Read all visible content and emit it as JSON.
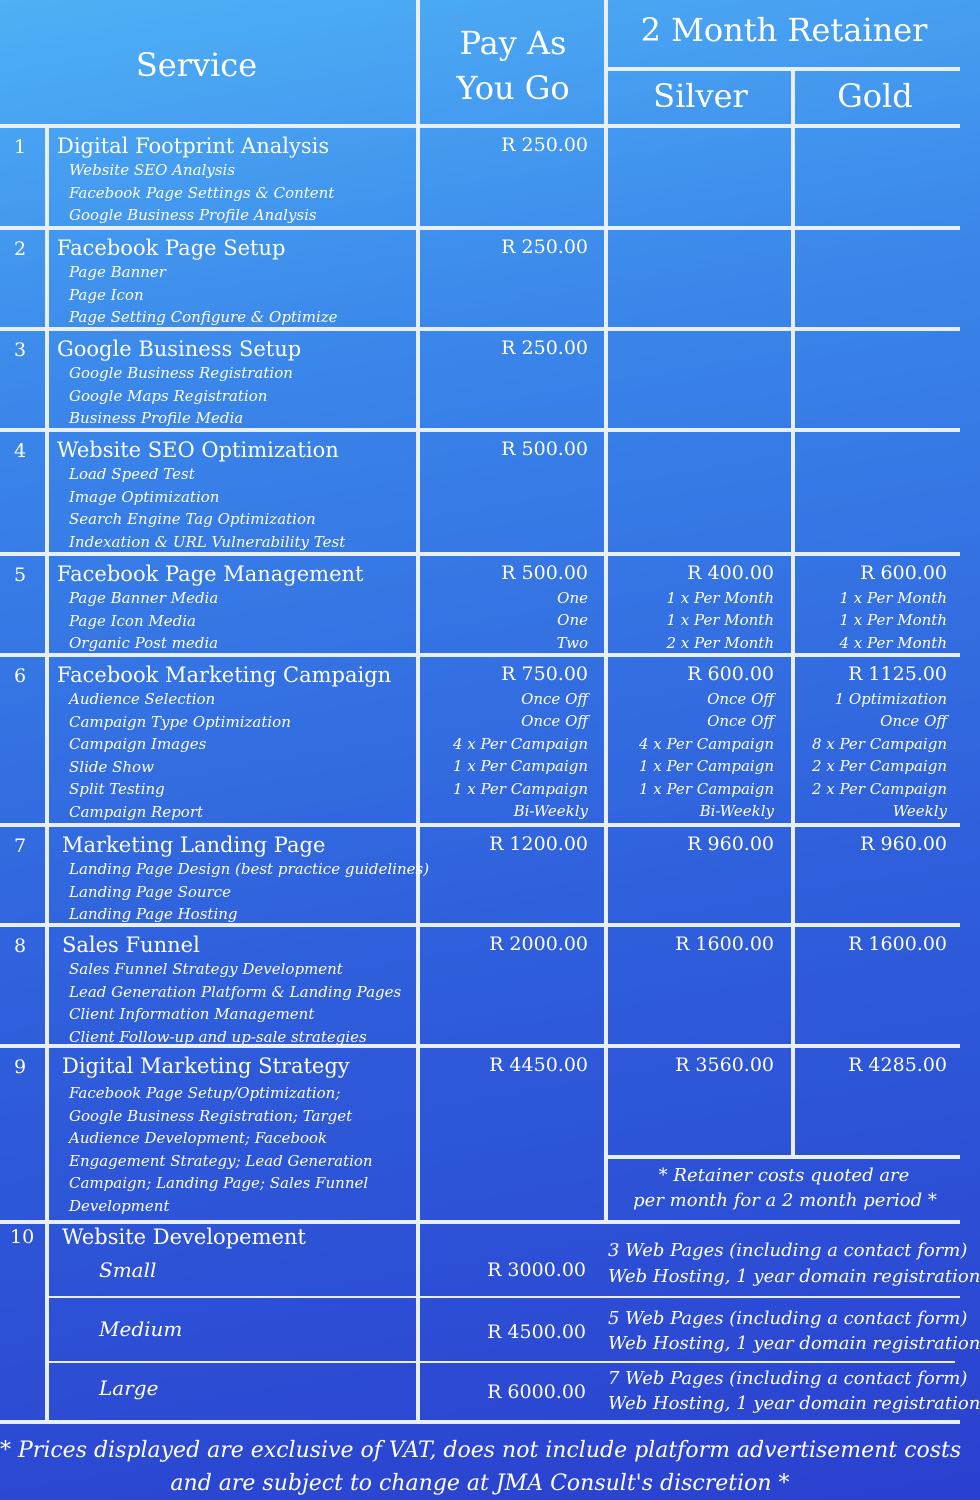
{
  "header": {
    "service": "Service",
    "payg_line1": "Pay As",
    "payg_line2": "You Go",
    "retainer": "2 Month Retainer",
    "silver": "Silver",
    "gold": "Gold"
  },
  "rows": [
    {
      "num": "1",
      "title": "Digital Footprint Analysis",
      "items": [
        "Website SEO Analysis",
        "Facebook Page Settings & Content",
        "Google Business Profile Analysis"
      ],
      "payg": [
        "R 250.00"
      ],
      "silver": [],
      "gold": []
    },
    {
      "num": "2",
      "title": "Facebook Page Setup",
      "items": [
        "Page Banner",
        "Page Icon",
        "Page Setting Configure & Optimize"
      ],
      "payg": [
        "R 250.00"
      ],
      "silver": [],
      "gold": []
    },
    {
      "num": "3",
      "title": "Google Business Setup",
      "items": [
        "Google Business Registration",
        "Google Maps Registration",
        "Business Profile Media"
      ],
      "payg": [
        "R 250.00"
      ],
      "silver": [],
      "gold": []
    },
    {
      "num": "4",
      "title": "Website SEO Optimization",
      "items": [
        "Load Speed Test",
        "Image Optimization",
        "Search Engine Tag Optimization",
        "Indexation & URL Vulnerability Test"
      ],
      "payg": [
        "R 500.00"
      ],
      "silver": [],
      "gold": []
    },
    {
      "num": "5",
      "title": "Facebook Page Management",
      "items": [
        "Page Banner Media",
        "Page Icon Media",
        "Organic Post media"
      ],
      "payg": [
        "R 500.00",
        "One",
        "One",
        "Two"
      ],
      "silver": [
        "R 400.00",
        "1 x Per Month",
        "1 x Per Month",
        "2 x Per Month"
      ],
      "gold": [
        "R 600.00",
        "1 x Per Month",
        "1 x Per Month",
        "4 x Per Month"
      ]
    },
    {
      "num": "6",
      "title": "Facebook Marketing Campaign",
      "items": [
        "Audience Selection",
        "Campaign Type Optimization",
        "Campaign Images",
        "Slide Show",
        "Split Testing",
        "Campaign Report"
      ],
      "payg": [
        "R 750.00",
        "Once Off",
        "Once Off",
        "4 x Per Campaign",
        "1 x Per Campaign",
        "1 x Per Campaign",
        "Bi-Weekly"
      ],
      "silver": [
        "R 600.00",
        "Once Off",
        "Once Off",
        "4 x Per Campaign",
        "1 x Per Campaign",
        "1 x Per Campaign",
        "Bi-Weekly"
      ],
      "gold": [
        "R 1125.00",
        "1 Optimization",
        "Once Off",
        "8 x Per Campaign",
        "2 x Per Campaign",
        "2 x Per Campaign",
        "Weekly"
      ]
    },
    {
      "num": "7",
      "title": "Marketing Landing Page",
      "items": [
        "Landing Page Design (best practice guidelines)",
        "Landing Page Source",
        "Landing Page Hosting"
      ],
      "payg": [
        "R 1200.00"
      ],
      "silver": [
        "R 960.00"
      ],
      "gold": [
        "R 960.00"
      ]
    },
    {
      "num": "8",
      "title": "Sales Funnel",
      "items": [
        "Sales Funnel Strategy Development",
        "Lead Generation Platform & Landing Pages",
        "Client Information Management",
        "Client Follow-up and up-sale strategies"
      ],
      "payg": [
        "R 2000.00"
      ],
      "silver": [
        "R 1600.00"
      ],
      "gold": [
        "R 1600.00"
      ]
    },
    {
      "num": "9",
      "title": "Digital Marketing Strategy",
      "items": [
        "Facebook Page Setup/Optimization;",
        "Google Business Registration; Target",
        "Audience Development; Facebook",
        "Engagement Strategy; Lead Generation",
        "Campaign; Landing Page; Sales Funnel",
        "Development"
      ],
      "payg": [
        "R 4450.00"
      ],
      "silver": [
        "R 3560.00"
      ],
      "gold": [
        "R 4285.00"
      ]
    }
  ],
  "retainer_note": [
    "* Retainer costs quoted are",
    "per month for a 2 month period *"
  ],
  "website": {
    "num": "10",
    "title": "Website Developement",
    "tiers": [
      {
        "size": "Small",
        "price": "R 3000.00",
        "desc": [
          "3 Web Pages (including a contact form)",
          "Web Hosting, 1 year domain registration"
        ]
      },
      {
        "size": "Medium",
        "price": "R 4500.00",
        "desc": [
          "5 Web Pages (including a contact form)",
          "Web Hosting, 1 year domain registration"
        ]
      },
      {
        "size": "Large",
        "price": "R 6000.00",
        "desc": [
          "7 Web Pages (including a contact form)",
          "Web Hosting, 1 year domain registration"
        ]
      }
    ]
  },
  "footer": [
    "* Prices displayed are exclusive of VAT, does not include platform advertisement costs",
    "and are subject to change at JMA Consult's discretion *"
  ]
}
